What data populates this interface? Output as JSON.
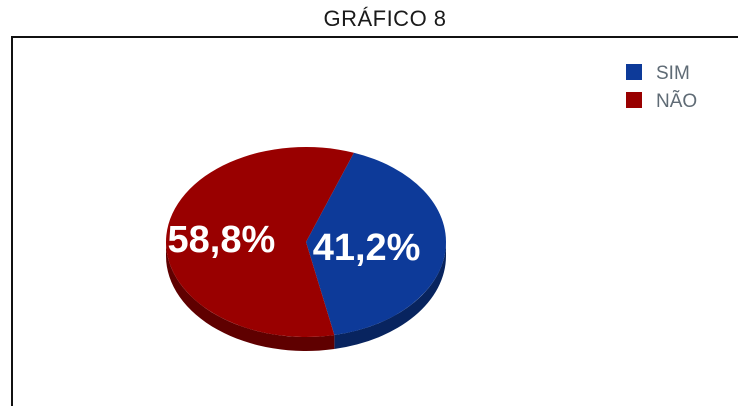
{
  "chart_data": {
    "type": "pie",
    "title": "GRÁFICO 8",
    "slices": [
      {
        "label": "SIM",
        "value": 41.2,
        "display": "41,2%",
        "color": "#0d3a99"
      },
      {
        "label": "NÃO",
        "value": 58.8,
        "display": "58,8%",
        "color": "#990000"
      }
    ],
    "legend": {
      "position": "top-right"
    },
    "style": {
      "three_d": true
    }
  }
}
